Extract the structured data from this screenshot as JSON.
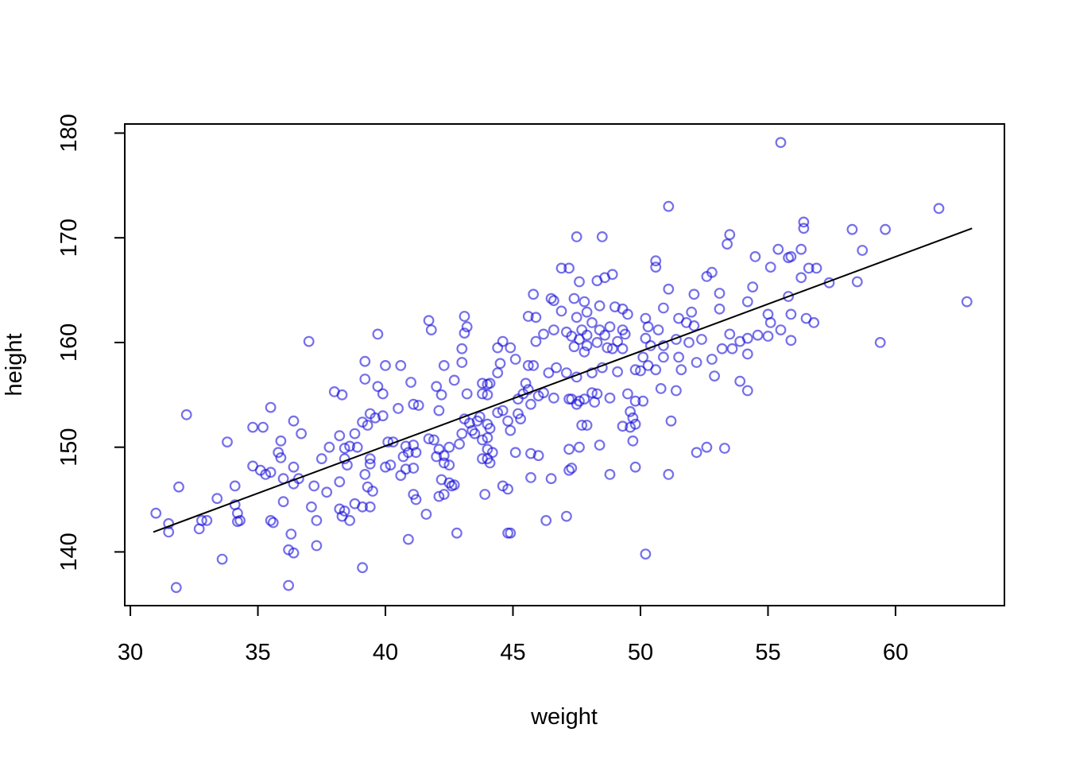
{
  "figure": {
    "background": "#ffffff",
    "axis_color": "#000000"
  },
  "chart_data": {
    "type": "scatter",
    "title": "",
    "xlabel": "weight",
    "ylabel": "height",
    "x_ticks": [
      30,
      35,
      40,
      45,
      50,
      55,
      60
    ],
    "y_ticks": [
      140,
      150,
      160,
      170,
      180
    ],
    "xlim": [
      29.78,
      64.27
    ],
    "ylim": [
      134.87,
      180.87
    ],
    "grid": false,
    "legend": null,
    "point_style": {
      "shape": "open-circle",
      "color": "rgba(18,8,218,0.58)",
      "color_hex_apparent": "#6E69E8",
      "radius": 5.8,
      "stroke_width": 2.2
    },
    "fit_line": {
      "x1": 30.9,
      "y1": 141.9,
      "x2": 63.0,
      "y2": 170.9,
      "color": "#000000",
      "width": 2
    },
    "points": [
      [
        37.0,
        160.1
      ],
      [
        39.7,
        160.8
      ],
      [
        39.2,
        158.2
      ],
      [
        40.0,
        157.8
      ],
      [
        40.6,
        157.8
      ],
      [
        41.7,
        162.1
      ],
      [
        41.8,
        161.2
      ],
      [
        42.3,
        157.8
      ],
      [
        43.1,
        162.5
      ],
      [
        43.2,
        161.5
      ],
      [
        43.1,
        160.9
      ],
      [
        43.0,
        159.4
      ],
      [
        43.0,
        158.1
      ],
      [
        44.4,
        159.5
      ],
      [
        44.6,
        160.1
      ],
      [
        44.9,
        159.5
      ],
      [
        44.5,
        158.0
      ],
      [
        45.1,
        158.4
      ],
      [
        45.6,
        162.5
      ],
      [
        45.6,
        157.8
      ],
      [
        45.8,
        157.8
      ],
      [
        45.9,
        162.4
      ],
      [
        46.5,
        164.2
      ],
      [
        46.6,
        164.0
      ],
      [
        45.8,
        164.6
      ],
      [
        46.9,
        167.1
      ],
      [
        46.2,
        160.8
      ],
      [
        46.6,
        161.2
      ],
      [
        45.9,
        160.1
      ],
      [
        46.9,
        163.0
      ],
      [
        47.1,
        161.0
      ],
      [
        55.5,
        179.1
      ],
      [
        51.1,
        173.0
      ],
      [
        47.5,
        170.1
      ],
      [
        48.5,
        170.1
      ],
      [
        53.5,
        170.3
      ],
      [
        53.4,
        169.4
      ],
      [
        55.4,
        168.9
      ],
      [
        54.5,
        168.2
      ],
      [
        55.8,
        168.1
      ],
      [
        50.6,
        167.8
      ],
      [
        50.6,
        167.2
      ],
      [
        55.1,
        167.2
      ],
      [
        52.8,
        166.7
      ],
      [
        52.6,
        166.3
      ],
      [
        47.6,
        165.8
      ],
      [
        48.3,
        165.9
      ],
      [
        48.6,
        166.2
      ],
      [
        48.9,
        166.5
      ],
      [
        51.1,
        165.1
      ],
      [
        54.4,
        165.3
      ],
      [
        52.1,
        164.6
      ],
      [
        47.4,
        164.2
      ],
      [
        47.8,
        163.9
      ],
      [
        53.1,
        164.7
      ],
      [
        53.1,
        163.2
      ],
      [
        54.2,
        163.9
      ],
      [
        48.4,
        163.5
      ],
      [
        49.0,
        163.4
      ],
      [
        49.3,
        163.2
      ],
      [
        49.5,
        162.7
      ],
      [
        47.9,
        162.9
      ],
      [
        47.5,
        162.4
      ],
      [
        48.1,
        161.9
      ],
      [
        48.8,
        161.5
      ],
      [
        50.9,
        163.3
      ],
      [
        51.5,
        162.3
      ],
      [
        52.0,
        162.9
      ],
      [
        50.2,
        162.3
      ],
      [
        50.3,
        161.5
      ],
      [
        50.7,
        161.2
      ],
      [
        52.1,
        161.6
      ],
      [
        55.0,
        162.7
      ],
      [
        55.1,
        161.9
      ],
      [
        55.8,
        164.4
      ],
      [
        47.2,
        167.1
      ],
      [
        47.7,
        161.2
      ],
      [
        47.3,
        160.6
      ],
      [
        47.6,
        160.3
      ],
      [
        47.9,
        160.7
      ],
      [
        48.4,
        161.2
      ],
      [
        48.6,
        160.7
      ],
      [
        48.3,
        160.0
      ],
      [
        47.9,
        159.7
      ],
      [
        47.4,
        159.6
      ],
      [
        47.8,
        159.1
      ],
      [
        48.7,
        159.5
      ],
      [
        48.9,
        159.4
      ],
      [
        49.3,
        161.2
      ],
      [
        49.4,
        160.8
      ],
      [
        49.1,
        160.1
      ],
      [
        49.3,
        159.4
      ],
      [
        50.2,
        160.4
      ],
      [
        50.4,
        159.7
      ],
      [
        50.9,
        159.7
      ],
      [
        51.4,
        160.3
      ],
      [
        50.9,
        158.6
      ],
      [
        51.5,
        158.6
      ],
      [
        50.1,
        158.6
      ],
      [
        50.3,
        157.8
      ],
      [
        49.8,
        157.4
      ],
      [
        51.8,
        161.9
      ],
      [
        51.9,
        160.0
      ],
      [
        52.4,
        160.3
      ],
      [
        53.5,
        160.8
      ],
      [
        53.9,
        160.1
      ],
      [
        54.2,
        160.4
      ],
      [
        54.6,
        160.7
      ],
      [
        55.5,
        161.2
      ],
      [
        55.0,
        160.6
      ],
      [
        54.2,
        158.9
      ],
      [
        53.2,
        159.4
      ],
      [
        53.6,
        159.4
      ],
      [
        52.8,
        158.4
      ],
      [
        52.2,
        158.1
      ],
      [
        51.6,
        157.4
      ],
      [
        61.7,
        172.8
      ],
      [
        56.4,
        171.5
      ],
      [
        56.4,
        170.9
      ],
      [
        58.3,
        170.8
      ],
      [
        59.6,
        170.8
      ],
      [
        58.7,
        168.8
      ],
      [
        56.3,
        168.9
      ],
      [
        55.9,
        168.2
      ],
      [
        56.6,
        167.1
      ],
      [
        56.9,
        167.1
      ],
      [
        56.3,
        166.2
      ],
      [
        57.4,
        165.7
      ],
      [
        58.5,
        165.8
      ],
      [
        62.8,
        163.9
      ],
      [
        55.9,
        162.7
      ],
      [
        56.5,
        162.3
      ],
      [
        56.8,
        161.9
      ],
      [
        55.9,
        160.2
      ],
      [
        59.4,
        160.0
      ],
      [
        32.2,
        153.1
      ],
      [
        35.5,
        153.8
      ],
      [
        34.8,
        151.9
      ],
      [
        35.2,
        151.9
      ],
      [
        36.4,
        152.5
      ],
      [
        36.7,
        151.3
      ],
      [
        33.8,
        150.5
      ],
      [
        35.9,
        150.6
      ],
      [
        35.8,
        149.5
      ],
      [
        35.9,
        149.0
      ],
      [
        34.8,
        148.2
      ],
      [
        35.1,
        147.8
      ],
      [
        35.3,
        147.4
      ],
      [
        35.5,
        147.6
      ],
      [
        36.4,
        148.1
      ],
      [
        36.6,
        147.0
      ],
      [
        31.9,
        146.2
      ],
      [
        31.0,
        143.7
      ],
      [
        31.5,
        142.7
      ],
      [
        31.5,
        141.9
      ],
      [
        32.8,
        143.0
      ],
      [
        33.0,
        143.0
      ],
      [
        32.7,
        142.2
      ],
      [
        33.4,
        145.1
      ],
      [
        34.1,
        144.5
      ],
      [
        34.2,
        143.7
      ],
      [
        34.3,
        143.0
      ],
      [
        34.2,
        142.9
      ],
      [
        33.6,
        139.3
      ],
      [
        31.8,
        136.6
      ],
      [
        36.2,
        136.8
      ],
      [
        36.3,
        141.7
      ],
      [
        36.2,
        140.2
      ],
      [
        36.4,
        139.9
      ],
      [
        37.3,
        140.6
      ],
      [
        35.5,
        143.0
      ],
      [
        35.6,
        142.8
      ],
      [
        36.0,
        144.8
      ],
      [
        37.1,
        144.3
      ],
      [
        37.3,
        143.0
      ],
      [
        38.0,
        155.3
      ],
      [
        38.3,
        155.0
      ],
      [
        38.2,
        151.1
      ],
      [
        38.4,
        149.9
      ],
      [
        38.4,
        148.9
      ],
      [
        38.2,
        146.7
      ],
      [
        38.2,
        144.1
      ],
      [
        38.4,
        143.9
      ],
      [
        38.3,
        143.4
      ],
      [
        39.2,
        156.5
      ],
      [
        41.0,
        156.2
      ],
      [
        39.7,
        155.8
      ],
      [
        39.9,
        155.1
      ],
      [
        42.0,
        155.8
      ],
      [
        42.2,
        155.0
      ],
      [
        42.7,
        156.4
      ],
      [
        43.2,
        155.1
      ],
      [
        43.8,
        156.1
      ],
      [
        44.0,
        156.0
      ],
      [
        44.1,
        156.1
      ],
      [
        43.8,
        155.1
      ],
      [
        44.0,
        155.0
      ],
      [
        44.4,
        157.1
      ],
      [
        45.5,
        156.1
      ],
      [
        45.6,
        155.5
      ],
      [
        45.4,
        155.1
      ],
      [
        45.2,
        154.6
      ],
      [
        46.0,
        154.9
      ],
      [
        46.2,
        155.2
      ],
      [
        46.6,
        154.7
      ],
      [
        47.1,
        157.1
      ],
      [
        47.2,
        154.6
      ],
      [
        41.1,
        154.1
      ],
      [
        41.3,
        154.0
      ],
      [
        40.5,
        153.7
      ],
      [
        39.4,
        153.2
      ],
      [
        39.6,
        152.8
      ],
      [
        39.9,
        153.0
      ],
      [
        39.1,
        152.4
      ],
      [
        39.3,
        152.1
      ],
      [
        38.8,
        151.3
      ],
      [
        38.6,
        150.1
      ],
      [
        38.9,
        150.0
      ],
      [
        38.5,
        148.3
      ],
      [
        40.1,
        150.5
      ],
      [
        40.3,
        150.5
      ],
      [
        40.8,
        150.1
      ],
      [
        41.1,
        150.2
      ],
      [
        40.9,
        149.5
      ],
      [
        41.2,
        149.5
      ],
      [
        40.7,
        149.1
      ],
      [
        40.8,
        147.9
      ],
      [
        41.1,
        148.0
      ],
      [
        40.6,
        147.3
      ],
      [
        40.2,
        148.3
      ],
      [
        40.0,
        148.1
      ],
      [
        39.4,
        148.9
      ],
      [
        39.4,
        148.4
      ],
      [
        39.2,
        147.4
      ],
      [
        39.3,
        146.2
      ],
      [
        39.5,
        145.8
      ],
      [
        38.8,
        144.6
      ],
      [
        39.1,
        144.3
      ],
      [
        39.4,
        144.3
      ],
      [
        38.6,
        143.0
      ],
      [
        41.1,
        145.5
      ],
      [
        41.2,
        145.0
      ],
      [
        41.6,
        143.6
      ],
      [
        41.7,
        150.8
      ],
      [
        41.9,
        150.7
      ],
      [
        42.1,
        149.8
      ],
      [
        42.0,
        149.1
      ],
      [
        42.3,
        149.2
      ],
      [
        42.5,
        150.0
      ],
      [
        42.9,
        150.3
      ],
      [
        42.3,
        148.5
      ],
      [
        42.5,
        148.3
      ],
      [
        42.2,
        146.9
      ],
      [
        42.5,
        146.6
      ],
      [
        42.6,
        146.3
      ],
      [
        42.3,
        145.5
      ],
      [
        42.1,
        145.3
      ],
      [
        42.7,
        146.4
      ],
      [
        42.8,
        141.8
      ],
      [
        40.9,
        141.2
      ],
      [
        39.1,
        138.5
      ],
      [
        42.1,
        153.5
      ],
      [
        43.1,
        152.7
      ],
      [
        43.3,
        152.3
      ],
      [
        43.6,
        152.5
      ],
      [
        43.7,
        152.9
      ],
      [
        44.0,
        152.2
      ],
      [
        44.1,
        151.8
      ],
      [
        43.4,
        151.6
      ],
      [
        43.5,
        151.3
      ],
      [
        43.0,
        151.3
      ],
      [
        43.8,
        150.7
      ],
      [
        44.0,
        150.9
      ],
      [
        44.4,
        153.3
      ],
      [
        44.6,
        153.5
      ],
      [
        44.8,
        152.5
      ],
      [
        45.2,
        153.2
      ],
      [
        45.3,
        152.7
      ],
      [
        45.7,
        154.1
      ],
      [
        44.9,
        151.6
      ],
      [
        45.7,
        149.4
      ],
      [
        46.0,
        149.2
      ],
      [
        45.1,
        149.5
      ],
      [
        44.0,
        149.8
      ],
      [
        44.2,
        149.5
      ],
      [
        43.8,
        148.9
      ],
      [
        44.0,
        148.9
      ],
      [
        44.1,
        148.5
      ],
      [
        43.9,
        145.5
      ],
      [
        44.6,
        146.3
      ],
      [
        44.8,
        146.0
      ],
      [
        44.8,
        141.8
      ],
      [
        44.9,
        141.8
      ],
      [
        46.3,
        143.0
      ],
      [
        47.1,
        143.4
      ],
      [
        45.7,
        147.1
      ],
      [
        46.5,
        147.0
      ],
      [
        47.2,
        147.8
      ],
      [
        48.5,
        157.6
      ],
      [
        49.1,
        157.2
      ],
      [
        50.0,
        157.3
      ],
      [
        50.6,
        157.4
      ],
      [
        47.5,
        156.7
      ],
      [
        48.1,
        157.1
      ],
      [
        52.9,
        156.8
      ],
      [
        53.9,
        156.3
      ],
      [
        54.2,
        155.4
      ],
      [
        50.8,
        155.6
      ],
      [
        51.4,
        155.4
      ],
      [
        49.5,
        155.1
      ],
      [
        49.8,
        154.4
      ],
      [
        50.1,
        154.4
      ],
      [
        48.1,
        155.2
      ],
      [
        48.3,
        155.1
      ],
      [
        47.8,
        154.6
      ],
      [
        47.6,
        154.4
      ],
      [
        47.3,
        154.6
      ],
      [
        47.5,
        154.1
      ],
      [
        48.2,
        154.3
      ],
      [
        48.8,
        154.7
      ],
      [
        47.7,
        152.1
      ],
      [
        47.9,
        152.1
      ],
      [
        48.4,
        150.2
      ],
      [
        47.2,
        149.8
      ],
      [
        49.6,
        153.4
      ],
      [
        49.7,
        152.8
      ],
      [
        49.3,
        152.0
      ],
      [
        49.8,
        152.2
      ],
      [
        49.6,
        151.9
      ],
      [
        51.2,
        152.5
      ],
      [
        49.7,
        150.6
      ],
      [
        47.6,
        150.0
      ],
      [
        52.2,
        149.5
      ],
      [
        52.6,
        150.0
      ],
      [
        53.3,
        149.9
      ],
      [
        48.8,
        147.4
      ],
      [
        49.8,
        148.1
      ],
      [
        51.1,
        147.4
      ],
      [
        47.3,
        148.0
      ],
      [
        50.2,
        139.8
      ],
      [
        46.7,
        157.6
      ],
      [
        46.4,
        157.1
      ],
      [
        36.0,
        147.0
      ],
      [
        36.4,
        146.5
      ],
      [
        34.1,
        146.3
      ],
      [
        37.8,
        150.0
      ],
      [
        37.5,
        148.9
      ],
      [
        37.2,
        146.3
      ],
      [
        37.7,
        145.7
      ]
    ]
  }
}
